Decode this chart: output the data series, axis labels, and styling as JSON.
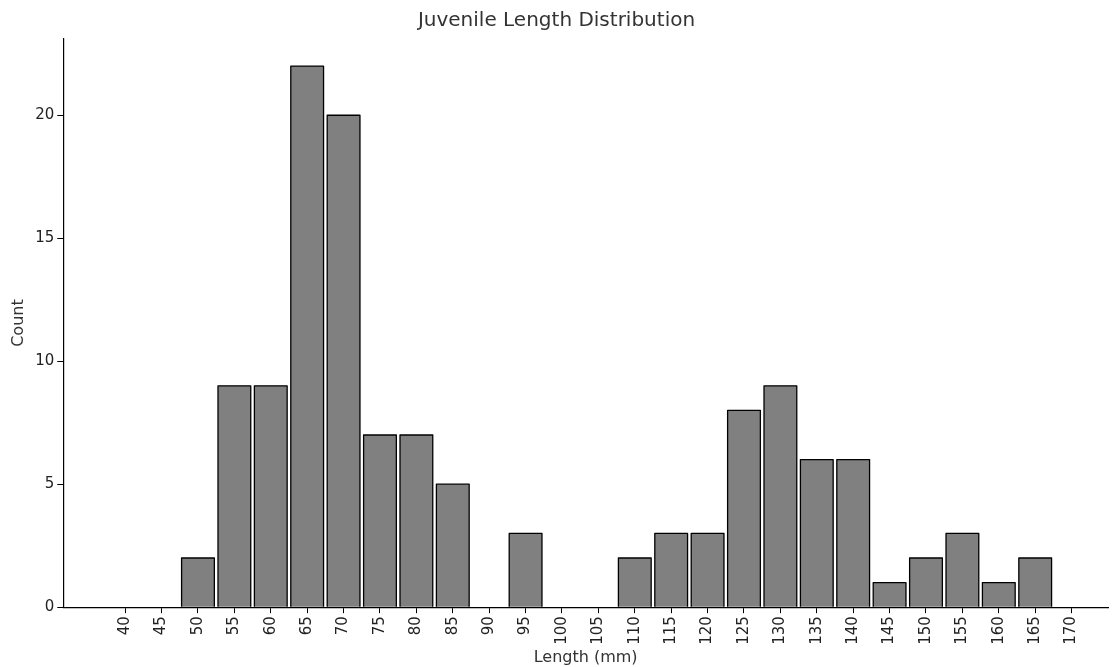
{
  "chart_data": {
    "type": "histogram",
    "title": "Juvenile Length Distribution",
    "xlabel": "Length (mm)",
    "ylabel": "Count",
    "bins": [
      47.5,
      52.5,
      57.5,
      62.5,
      67.5,
      72.5,
      77.5,
      82.5,
      87.5,
      92.5,
      97.5,
      102.5,
      107.5,
      112.5,
      117.5,
      122.5,
      127.5,
      132.5,
      137.5,
      142.5,
      147.5,
      152.5,
      157.5,
      162.5,
      167.5
    ],
    "values": [
      2,
      9,
      9,
      22,
      20,
      7,
      7,
      5,
      0,
      3,
      0,
      0,
      2,
      3,
      3,
      8,
      9,
      6,
      6,
      1,
      2,
      3,
      1,
      2
    ],
    "color": "#808080",
    "xlim": [
      31.5,
      175
    ],
    "xticks": [
      40,
      45,
      50,
      55,
      60,
      65,
      70,
      75,
      80,
      85,
      90,
      95,
      100,
      105,
      110,
      115,
      120,
      125,
      130,
      135,
      140,
      145,
      150,
      155,
      160,
      165,
      170
    ],
    "ylim": [
      0,
      23.1
    ],
    "yticks": [
      0,
      5,
      10,
      15,
      20
    ],
    "grid": false,
    "legend": false
  }
}
